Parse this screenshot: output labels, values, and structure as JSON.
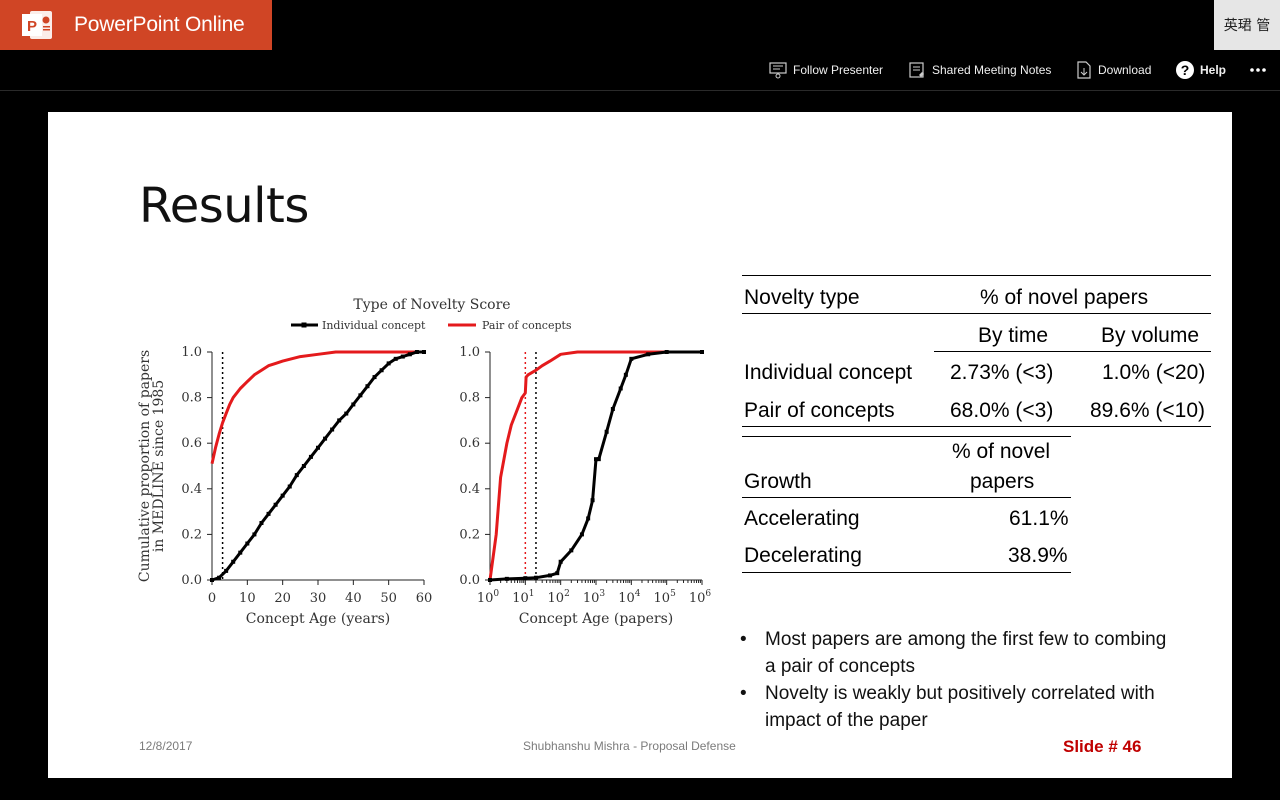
{
  "app": {
    "title": "PowerPoint Online",
    "user": "英珺 管"
  },
  "commands": {
    "follow_presenter": "Follow Presenter",
    "shared_notes": "Shared Meeting Notes",
    "download": "Download",
    "help": "Help",
    "more_icon": "ellipsis-icon"
  },
  "slide": {
    "title": "Results",
    "footer_date": "12/8/2017",
    "footer_author": "Shubhanshu Mishra - Proposal Defense",
    "footer_slide": "Slide # 46",
    "bullets": [
      "Most papers are among the first few to combing a pair of concepts",
      "Novelty is weakly but positively correlated with impact of the paper"
    ]
  },
  "table1": {
    "col1_header": "Novelty type",
    "col2_header": "% of novel papers",
    "sub_by_time": "By time",
    "sub_by_volume": "By volume",
    "rows": [
      {
        "label": "Individual concept",
        "by_time": "2.73% (<3)",
        "by_volume": "1.0% (<20)"
      },
      {
        "label": "Pair of concepts",
        "by_time": "68.0% (<3)",
        "by_volume": "89.6% (<10)"
      }
    ]
  },
  "table2": {
    "col1_header": "Growth",
    "col2_header_line1": "% of novel",
    "col2_header_line2": "papers",
    "rows": [
      {
        "label": "Accelerating",
        "value": "61.1%"
      },
      {
        "label": "Decelerating",
        "value": "38.9%"
      }
    ]
  },
  "chart_data": [
    {
      "type": "line",
      "title": "Type of Novelty Score",
      "xlabel": "Concept Age (years)",
      "ylabel": "Cumulative proportion of papers in MEDLINE since 1985",
      "xlim": [
        0,
        60
      ],
      "ylim": [
        0,
        1.0
      ],
      "xticks": [
        "0",
        "10",
        "20",
        "30",
        "40",
        "50",
        "60"
      ],
      "yticks": [
        "0.0",
        "0.2",
        "0.4",
        "0.6",
        "0.8",
        "1.0"
      ],
      "vline": 3,
      "legend_position": "top",
      "series": [
        {
          "name": "Individual concept",
          "color": "#000000",
          "x": [
            0,
            2,
            4,
            6,
            8,
            10,
            12,
            14,
            16,
            18,
            20,
            22,
            24,
            26,
            28,
            30,
            32,
            34,
            36,
            38,
            40,
            42,
            44,
            46,
            48,
            50,
            52,
            54,
            56,
            58,
            60
          ],
          "y": [
            0.0,
            0.01,
            0.04,
            0.08,
            0.12,
            0.16,
            0.2,
            0.25,
            0.29,
            0.33,
            0.37,
            0.41,
            0.46,
            0.5,
            0.54,
            0.58,
            0.62,
            0.66,
            0.7,
            0.73,
            0.77,
            0.81,
            0.85,
            0.89,
            0.92,
            0.95,
            0.97,
            0.98,
            0.99,
            1.0,
            1.0
          ]
        },
        {
          "name": "Pair of concepts",
          "color": "#e41a1c",
          "x": [
            0,
            1,
            2,
            3,
            4,
            5,
            6,
            8,
            10,
            12,
            14,
            16,
            18,
            20,
            25,
            30,
            35,
            40,
            45,
            50,
            55,
            60
          ],
          "y": [
            0.51,
            0.58,
            0.64,
            0.69,
            0.73,
            0.77,
            0.8,
            0.84,
            0.87,
            0.9,
            0.92,
            0.94,
            0.95,
            0.96,
            0.98,
            0.99,
            1.0,
            1.0,
            1.0,
            1.0,
            1.0,
            1.0
          ]
        }
      ]
    },
    {
      "type": "line",
      "xlabel": "Concept Age (papers)",
      "xscale": "log",
      "xlim": [
        1,
        1000000
      ],
      "ylim": [
        0,
        1.0
      ],
      "xticks": [
        "10^0",
        "10^1",
        "10^2",
        "10^3",
        "10^4",
        "10^5",
        "10^6"
      ],
      "yticks": [
        "0.0",
        "0.2",
        "0.4",
        "0.6",
        "0.8",
        "1.0"
      ],
      "vlines": [
        10,
        20
      ],
      "series": [
        {
          "name": "Individual concept",
          "color": "#000000",
          "x": [
            1,
            3,
            10,
            20,
            50,
            80,
            100,
            200,
            400,
            600,
            800,
            1000,
            1200,
            2000,
            3000,
            5000,
            7000,
            10000,
            30000,
            100000,
            1000000
          ],
          "y": [
            0.0,
            0.005,
            0.008,
            0.01,
            0.02,
            0.03,
            0.08,
            0.13,
            0.2,
            0.27,
            0.35,
            0.53,
            0.53,
            0.65,
            0.75,
            0.84,
            0.9,
            0.97,
            0.99,
            1.0,
            1.0
          ]
        },
        {
          "name": "Pair of concepts",
          "color": "#e41a1c",
          "x": [
            1,
            1.5,
            2,
            3,
            4,
            6,
            8,
            10,
            10.5,
            12,
            20,
            30,
            50,
            100,
            300,
            1000,
            10000,
            100000,
            1000000
          ],
          "y": [
            0.0,
            0.2,
            0.45,
            0.6,
            0.68,
            0.75,
            0.8,
            0.82,
            0.89,
            0.9,
            0.92,
            0.94,
            0.96,
            0.99,
            1.0,
            1.0,
            1.0,
            1.0,
            1.0
          ]
        }
      ]
    }
  ],
  "colors": {
    "brand": "#d04525",
    "series_red": "#e41a1c",
    "slide_number": "#c00000"
  }
}
